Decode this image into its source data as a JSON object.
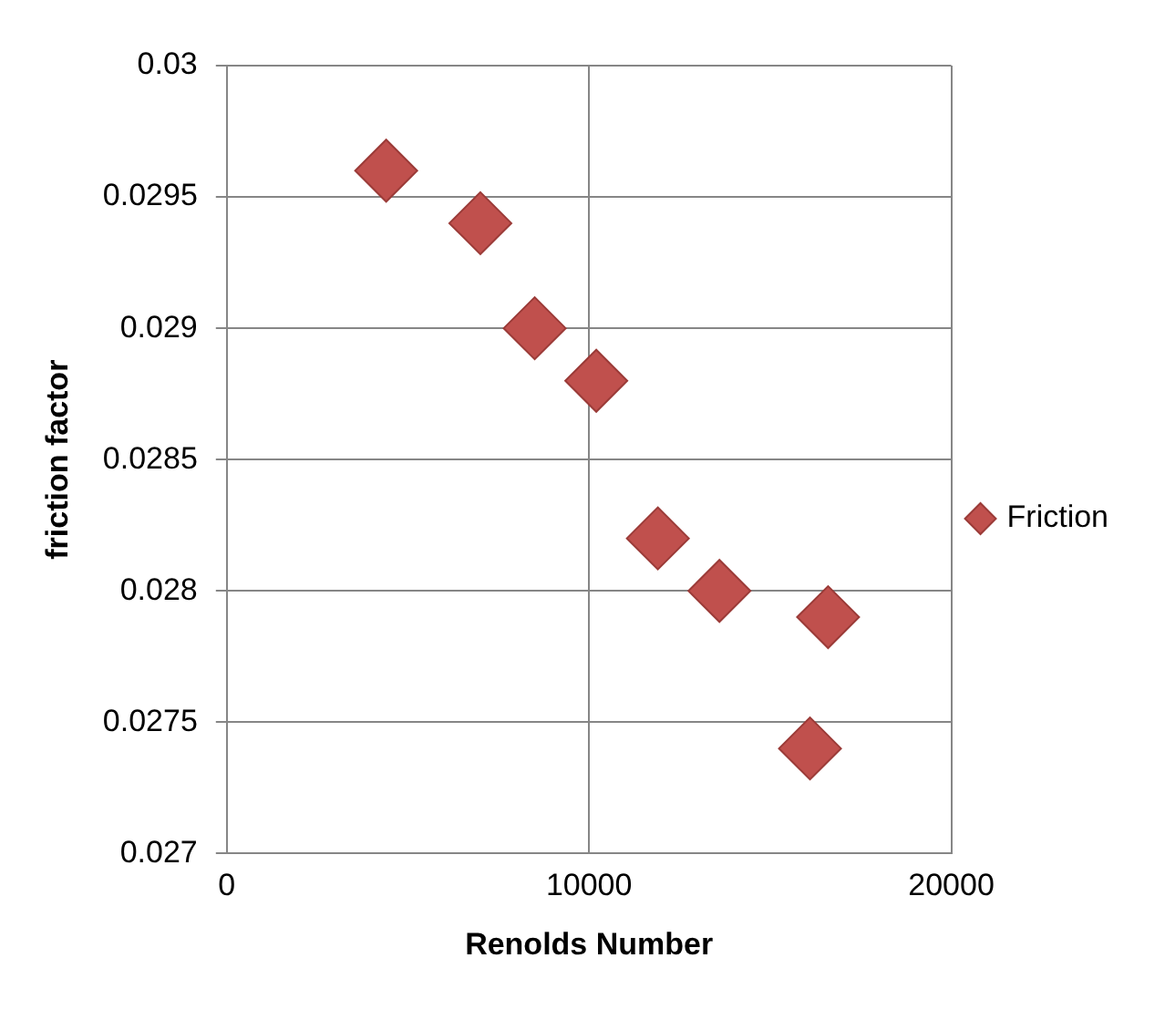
{
  "chart_data": {
    "type": "scatter",
    "xlabel": "Renolds Number",
    "ylabel": "friction factor",
    "series": [
      {
        "name": "Friction",
        "color": "#c0504d",
        "x": [
          4400,
          7000,
          8500,
          10200,
          11900,
          13600,
          16600,
          16100
        ],
        "values": [
          0.0296,
          0.0294,
          0.029,
          0.0288,
          0.0282,
          0.028,
          0.0279,
          0.0274
        ]
      }
    ],
    "xlim": [
      0,
      20000
    ],
    "xticks": [
      0,
      10000,
      20000
    ],
    "ylim": [
      0.027,
      0.03
    ],
    "yticks": [
      0.027,
      0.0275,
      0.028,
      0.0285,
      0.029,
      0.0295,
      0.03
    ],
    "grid": true,
    "legend": "right",
    "marker": "diamond"
  }
}
